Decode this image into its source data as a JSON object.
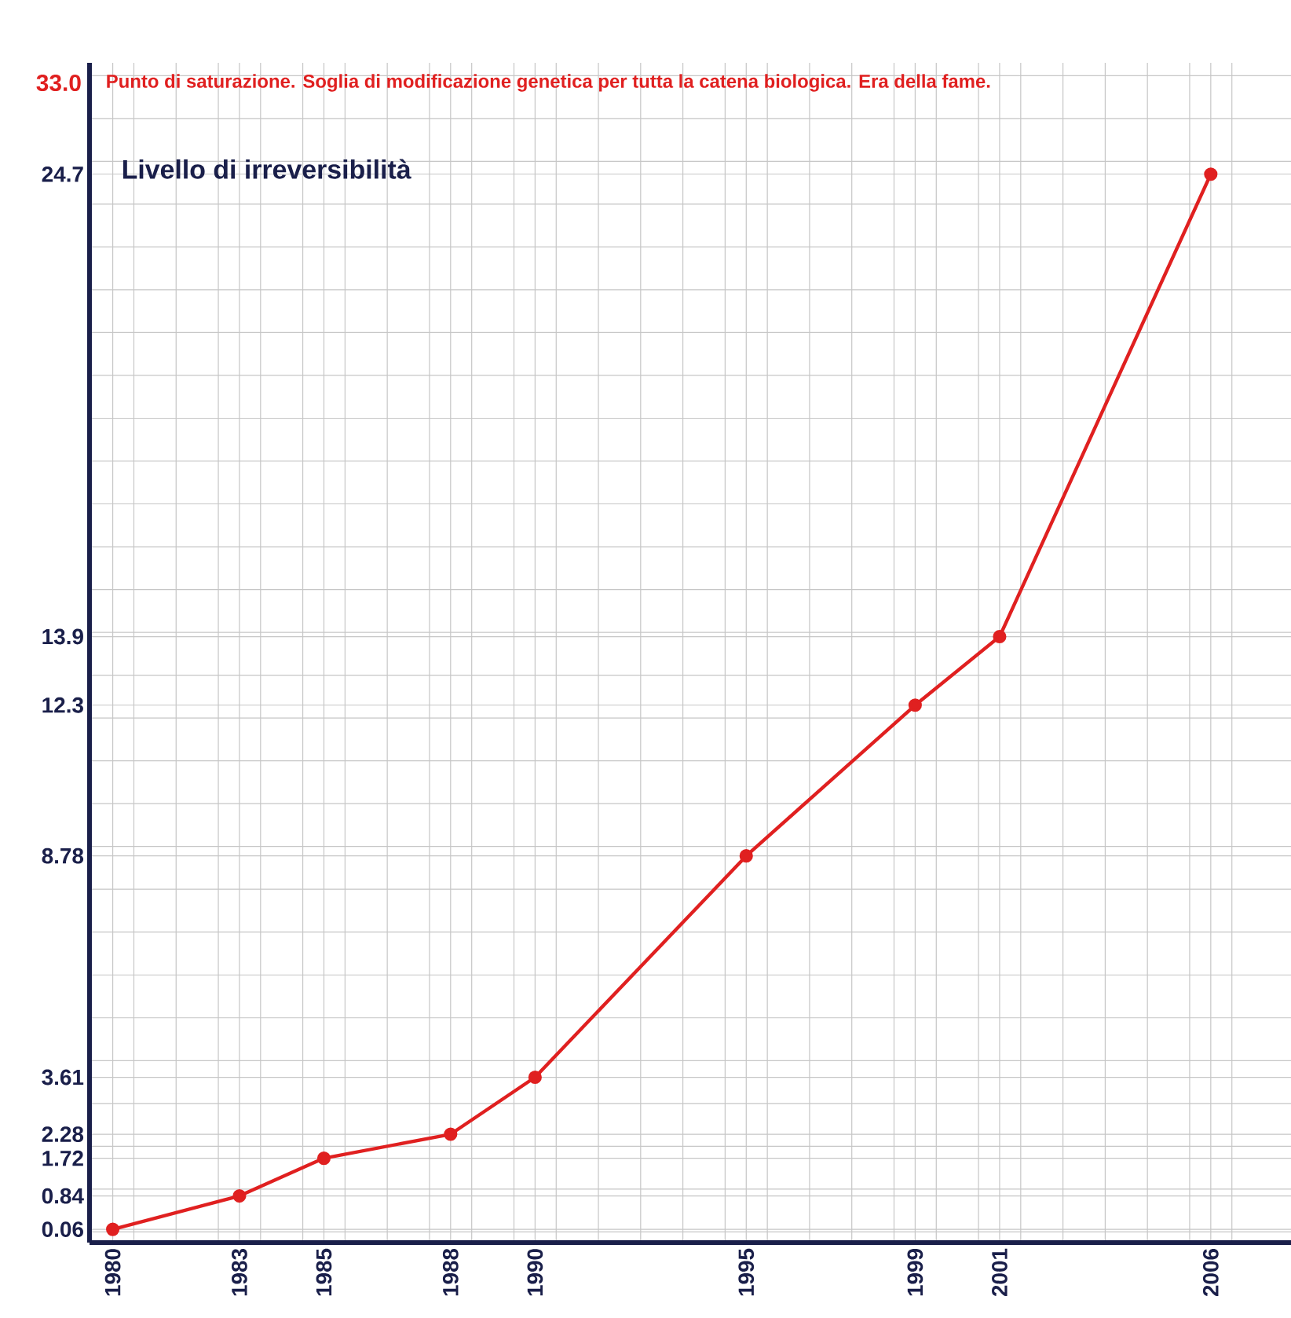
{
  "chart_data": {
    "type": "line",
    "x": [
      1980,
      1983,
      1985,
      1988,
      1990,
      1995,
      1999,
      2001,
      2006
    ],
    "series": [
      {
        "color": "#e02020",
        "values": [
          0.06,
          0.84,
          1.72,
          2.28,
          3.61,
          8.78,
          12.3,
          13.9,
          24.7
        ]
      }
    ],
    "xlim": [
      1979.45,
      2007.9
    ],
    "ylim": [
      -0.25,
      27.3
    ],
    "xticks": [
      1980,
      1983,
      1985,
      1988,
      1990,
      1995,
      1999,
      2001,
      2006
    ],
    "yticks": [
      0.06,
      0.84,
      1.72,
      2.28,
      3.61,
      8.78,
      12.3,
      13.9,
      24.7
    ],
    "annotations": [
      "33.0",
      "Punto di saturazione. Soglia di modificazione genetica per tutta la catena biologica. Era della fame.",
      "Livello di irreversibilità"
    ],
    "grid": true,
    "marker": "circle",
    "line_style": "solid"
  }
}
